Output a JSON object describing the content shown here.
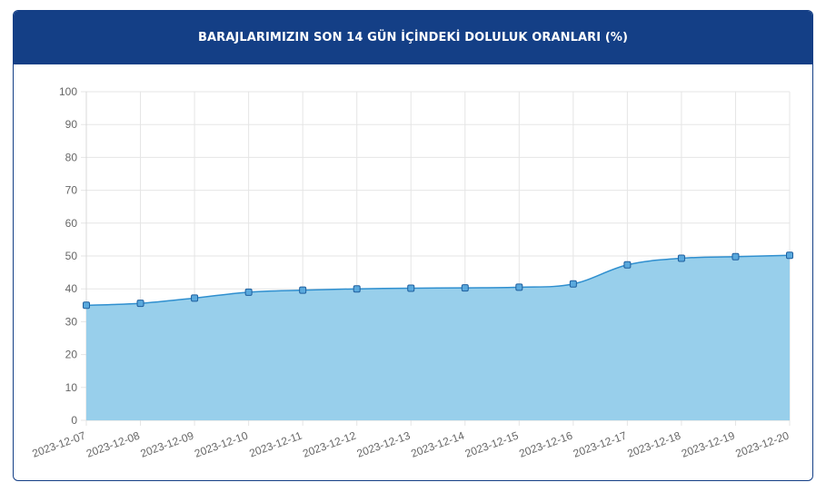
{
  "header": {
    "title": "BARAJLARIMIZIN SON 14 GÜN İÇİNDEKİ DOLULUK ORANLARI (%)"
  },
  "colors": {
    "header_bg": "#143f86",
    "line": "#2f8fcf",
    "fill": "#98cfeb",
    "point_fill": "#5aa9dd",
    "point_stroke": "#1f5f9e",
    "grid": "#e5e5e5"
  },
  "chart_data": {
    "type": "area",
    "x": [
      "2023-12-07",
      "2023-12-08",
      "2023-12-09",
      "2023-12-10",
      "2023-12-11",
      "2023-12-12",
      "2023-12-13",
      "2023-12-14",
      "2023-12-15",
      "2023-12-16",
      "2023-12-17",
      "2023-12-18",
      "2023-12-19",
      "2023-12-20"
    ],
    "series": [
      {
        "values": [
          35.0,
          35.6,
          37.2,
          39.0,
          39.6,
          40.0,
          40.2,
          40.3,
          40.5,
          41.5,
          47.3,
          49.3,
          49.8,
          50.2
        ]
      }
    ],
    "ylim": [
      0,
      100
    ],
    "yticks": [
      "0",
      "10",
      "20",
      "30",
      "40",
      "50",
      "60",
      "70",
      "80",
      "90",
      "100"
    ],
    "grid": true,
    "legend": "none"
  }
}
